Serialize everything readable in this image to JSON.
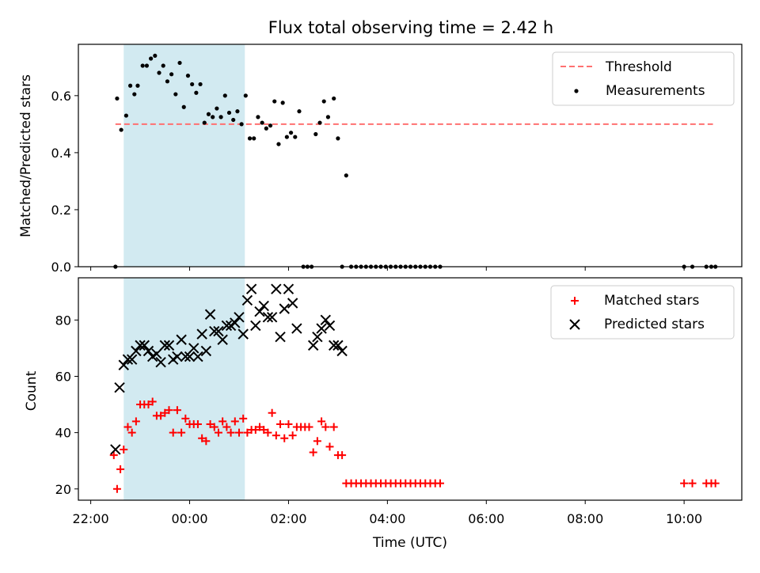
{
  "title": "Flux total observing time = 2.42 h",
  "chart_data": [
    {
      "type": "scatter",
      "ylabel": "Matched/Predicted stars",
      "ylim": [
        0,
        0.78
      ],
      "xlim": [
        "21:45",
        "11:10"
      ],
      "yticks": [
        "0.0",
        "0.2",
        "0.4",
        "0.6"
      ],
      "highlight_span": {
        "start": "22:40",
        "end": "01:07",
        "color": "#add8e6"
      },
      "legend": {
        "position": "upper right",
        "entries": [
          "Threshold",
          "Measurements"
        ]
      },
      "threshold": {
        "name": "Threshold",
        "value": 0.5,
        "x_start": "22:30",
        "x_end": "10:35",
        "color": "#ff7070",
        "style": "dashed"
      },
      "series": [
        {
          "name": "Measurements",
          "color": "#000000",
          "marker": "dot",
          "points": [
            [
              "22:30",
              0.0
            ],
            [
              "22:32",
              0.59
            ],
            [
              "22:37",
              0.48
            ],
            [
              "22:43",
              0.53
            ],
            [
              "22:48",
              0.635
            ],
            [
              "22:53",
              0.605
            ],
            [
              "22:57",
              0.635
            ],
            [
              "23:03",
              0.705
            ],
            [
              "23:08",
              0.705
            ],
            [
              "23:13",
              0.73
            ],
            [
              "23:18",
              0.74
            ],
            [
              "23:23",
              0.68
            ],
            [
              "23:28",
              0.705
            ],
            [
              "23:33",
              0.65
            ],
            [
              "23:38",
              0.675
            ],
            [
              "23:43",
              0.605
            ],
            [
              "23:48",
              0.715
            ],
            [
              "23:53",
              0.56
            ],
            [
              "23:58",
              0.67
            ],
            [
              "00:03",
              0.64
            ],
            [
              "00:08",
              0.61
            ],
            [
              "00:13",
              0.64
            ],
            [
              "00:18",
              0.505
            ],
            [
              "00:23",
              0.535
            ],
            [
              "00:28",
              0.525
            ],
            [
              "00:33",
              0.555
            ],
            [
              "00:38",
              0.525
            ],
            [
              "00:43",
              0.6
            ],
            [
              "00:48",
              0.54
            ],
            [
              "00:53",
              0.515
            ],
            [
              "00:58",
              0.545
            ],
            [
              "01:03",
              0.5
            ],
            [
              "01:08",
              0.6
            ],
            [
              "01:13",
              0.45
            ],
            [
              "01:18",
              0.45
            ],
            [
              "01:23",
              0.525
            ],
            [
              "01:28",
              0.505
            ],
            [
              "01:33",
              0.485
            ],
            [
              "01:38",
              0.495
            ],
            [
              "01:43",
              0.58
            ],
            [
              "01:48",
              0.43
            ],
            [
              "01:53",
              0.575
            ],
            [
              "01:58",
              0.455
            ],
            [
              "02:03",
              0.47
            ],
            [
              "02:08",
              0.455
            ],
            [
              "02:13",
              0.545
            ],
            [
              "02:18",
              0.0
            ],
            [
              "02:23",
              0.0
            ],
            [
              "02:28",
              0.0
            ],
            [
              "02:33",
              0.465
            ],
            [
              "02:38",
              0.505
            ],
            [
              "02:43",
              0.58
            ],
            [
              "02:48",
              0.525
            ],
            [
              "02:55",
              0.59
            ],
            [
              "03:00",
              0.45
            ],
            [
              "03:05",
              0.0
            ],
            [
              "03:10",
              0.32
            ],
            [
              "03:16",
              0.0
            ],
            [
              "03:22",
              0.0
            ],
            [
              "03:28",
              0.0
            ],
            [
              "03:34",
              0.0
            ],
            [
              "03:40",
              0.0
            ],
            [
              "03:46",
              0.0
            ],
            [
              "03:52",
              0.0
            ],
            [
              "03:58",
              0.0
            ],
            [
              "04:04",
              0.0
            ],
            [
              "04:10",
              0.0
            ],
            [
              "04:16",
              0.0
            ],
            [
              "04:22",
              0.0
            ],
            [
              "04:28",
              0.0
            ],
            [
              "04:34",
              0.0
            ],
            [
              "04:40",
              0.0
            ],
            [
              "04:46",
              0.0
            ],
            [
              "04:52",
              0.0
            ],
            [
              "04:58",
              0.0
            ],
            [
              "05:04",
              0.0
            ],
            [
              "10:00",
              0.0
            ],
            [
              "10:10",
              0.0
            ],
            [
              "10:27",
              0.0
            ],
            [
              "10:33",
              0.0
            ],
            [
              "10:38",
              0.0
            ]
          ]
        }
      ]
    },
    {
      "type": "scatter",
      "xlabel": "Time (UTC)",
      "ylabel": "Count",
      "ylim": [
        16,
        95
      ],
      "xlim": [
        "21:45",
        "11:10"
      ],
      "xticks": [
        "22:00",
        "00:00",
        "02:00",
        "04:00",
        "06:00",
        "08:00",
        "10:00"
      ],
      "yticks": [
        "20",
        "40",
        "60",
        "80"
      ],
      "highlight_span": {
        "start": "22:40",
        "end": "01:07",
        "color": "#add8e6"
      },
      "legend": {
        "position": "upper right",
        "entries": [
          "Matched stars",
          "Predicted stars"
        ]
      },
      "series": [
        {
          "name": "Matched stars",
          "color": "#ff0000",
          "marker": "plus",
          "points": [
            [
              "22:28",
              32
            ],
            [
              "22:32",
              20
            ],
            [
              "22:36",
              27
            ],
            [
              "22:40",
              34
            ],
            [
              "22:45",
              42
            ],
            [
              "22:50",
              40
            ],
            [
              "22:55",
              44
            ],
            [
              "23:00",
              50
            ],
            [
              "23:05",
              50
            ],
            [
              "23:10",
              50
            ],
            [
              "23:15",
              51
            ],
            [
              "23:20",
              46
            ],
            [
              "23:25",
              46
            ],
            [
              "23:30",
              47
            ],
            [
              "23:35",
              48
            ],
            [
              "23:40",
              40
            ],
            [
              "23:45",
              48
            ],
            [
              "23:50",
              40
            ],
            [
              "23:55",
              45
            ],
            [
              "00:00",
              43
            ],
            [
              "00:05",
              43
            ],
            [
              "00:10",
              43
            ],
            [
              "00:15",
              38
            ],
            [
              "00:20",
              37
            ],
            [
              "00:25",
              43
            ],
            [
              "00:30",
              42
            ],
            [
              "00:35",
              40
            ],
            [
              "00:40",
              44
            ],
            [
              "00:45",
              42
            ],
            [
              "00:50",
              40
            ],
            [
              "00:55",
              44
            ],
            [
              "01:00",
              40
            ],
            [
              "01:05",
              45
            ],
            [
              "01:10",
              40
            ],
            [
              "01:15",
              41
            ],
            [
              "01:20",
              41
            ],
            [
              "01:25",
              42
            ],
            [
              "01:30",
              41
            ],
            [
              "01:35",
              40
            ],
            [
              "01:40",
              47
            ],
            [
              "01:45",
              39
            ],
            [
              "01:50",
              43
            ],
            [
              "01:55",
              38
            ],
            [
              "02:00",
              43
            ],
            [
              "02:05",
              39
            ],
            [
              "02:10",
              42
            ],
            [
              "02:15",
              42
            ],
            [
              "02:20",
              42
            ],
            [
              "02:25",
              42
            ],
            [
              "02:30",
              33
            ],
            [
              "02:35",
              37
            ],
            [
              "02:40",
              44
            ],
            [
              "02:45",
              42
            ],
            [
              "02:50",
              35
            ],
            [
              "02:55",
              42
            ],
            [
              "03:00",
              32
            ],
            [
              "03:05",
              32
            ],
            [
              "03:10",
              22
            ],
            [
              "03:16",
              22
            ],
            [
              "03:22",
              22
            ],
            [
              "03:28",
              22
            ],
            [
              "03:34",
              22
            ],
            [
              "03:40",
              22
            ],
            [
              "03:46",
              22
            ],
            [
              "03:52",
              22
            ],
            [
              "03:58",
              22
            ],
            [
              "04:04",
              22
            ],
            [
              "04:10",
              22
            ],
            [
              "04:16",
              22
            ],
            [
              "04:22",
              22
            ],
            [
              "04:28",
              22
            ],
            [
              "04:34",
              22
            ],
            [
              "04:40",
              22
            ],
            [
              "04:46",
              22
            ],
            [
              "04:52",
              22
            ],
            [
              "04:58",
              22
            ],
            [
              "05:04",
              22
            ],
            [
              "10:00",
              22
            ],
            [
              "10:10",
              22
            ],
            [
              "10:27",
              22
            ],
            [
              "10:33",
              22
            ],
            [
              "10:38",
              22
            ]
          ]
        },
        {
          "name": "Predicted stars",
          "color": "#000000",
          "marker": "x",
          "points": [
            [
              "22:30",
              34
            ],
            [
              "22:35",
              56
            ],
            [
              "22:40",
              64
            ],
            [
              "22:45",
              66
            ],
            [
              "22:50",
              66
            ],
            [
              "22:55",
              69
            ],
            [
              "23:00",
              71
            ],
            [
              "23:05",
              71
            ],
            [
              "23:10",
              69
            ],
            [
              "23:15",
              67
            ],
            [
              "23:20",
              68
            ],
            [
              "23:25",
              65
            ],
            [
              "23:30",
              71
            ],
            [
              "23:35",
              71
            ],
            [
              "23:40",
              66
            ],
            [
              "23:45",
              67
            ],
            [
              "23:50",
              73
            ],
            [
              "23:55",
              67
            ],
            [
              "00:00",
              67
            ],
            [
              "00:05",
              70
            ],
            [
              "00:10",
              67
            ],
            [
              "00:15",
              75
            ],
            [
              "00:20",
              69
            ],
            [
              "00:25",
              82
            ],
            [
              "00:30",
              76
            ],
            [
              "00:35",
              76
            ],
            [
              "00:40",
              73
            ],
            [
              "00:45",
              78
            ],
            [
              "00:50",
              78
            ],
            [
              "00:55",
              79
            ],
            [
              "01:00",
              81
            ],
            [
              "01:05",
              75
            ],
            [
              "01:10",
              87
            ],
            [
              "01:15",
              91
            ],
            [
              "01:20",
              78
            ],
            [
              "01:25",
              83
            ],
            [
              "01:30",
              85
            ],
            [
              "01:35",
              81
            ],
            [
              "01:40",
              81
            ],
            [
              "01:45",
              91
            ],
            [
              "01:50",
              74
            ],
            [
              "01:55",
              84
            ],
            [
              "02:00",
              91
            ],
            [
              "02:05",
              86
            ],
            [
              "02:10",
              77
            ],
            [
              "02:30",
              71
            ],
            [
              "02:35",
              74
            ],
            [
              "02:40",
              77
            ],
            [
              "02:45",
              80
            ],
            [
              "02:50",
              78
            ],
            [
              "02:55",
              71
            ],
            [
              "03:00",
              71
            ],
            [
              "03:05",
              69
            ]
          ]
        }
      ]
    }
  ]
}
